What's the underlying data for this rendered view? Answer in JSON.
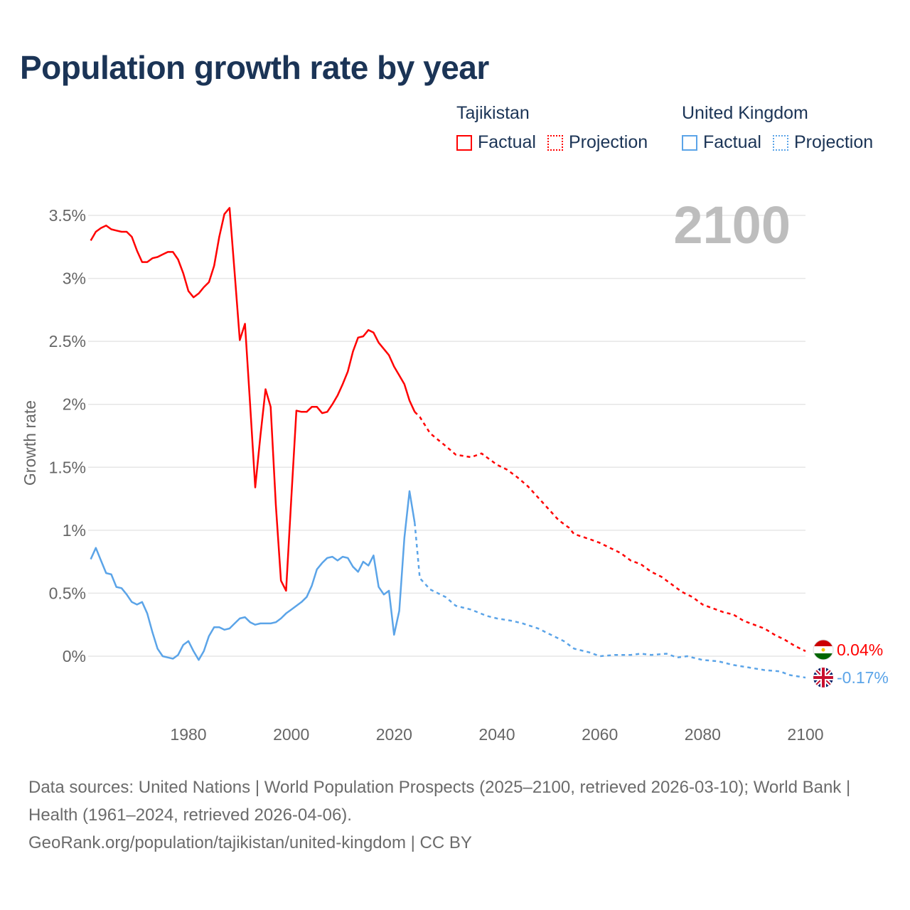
{
  "title": "Population growth rate by year",
  "legend": [
    {
      "country": "Tajikistan",
      "factual": "Factual",
      "projection": "Projection",
      "color": "#ff0000"
    },
    {
      "country": "United Kingdom",
      "factual": "Factual",
      "projection": "Projection",
      "color": "#5ba4e8"
    }
  ],
  "year_watermark": "2100",
  "end_labels": {
    "tajikistan": "0.04%",
    "united_kingdom": "-0.17%"
  },
  "footer": {
    "sources": "Data sources: United Nations | World Population Prospects (2025–2100, retrieved 2026-03-10); World Bank | Health (1961–2024, retrieved 2026-04-06).",
    "link": "GeoRank.org/population/tajikistan/united-kingdom | CC BY"
  },
  "chart_data": {
    "type": "line",
    "title": "Population growth rate by year",
    "xlabel": "",
    "ylabel": "Growth rate",
    "xlim": [
      1961,
      2100
    ],
    "ylim": [
      -0.5,
      3.6
    ],
    "x_ticks": [
      1980,
      2000,
      2020,
      2040,
      2060,
      2080,
      2100
    ],
    "y_ticks": [
      0,
      0.5,
      1,
      1.5,
      2,
      2.5,
      3,
      3.5
    ],
    "y_tick_labels": [
      "0%",
      "0.5%",
      "1%",
      "1.5%",
      "2%",
      "2.5%",
      "3%",
      "3.5%"
    ],
    "series": [
      {
        "name": "Tajikistan Factual",
        "color": "#ff0000",
        "style": "solid",
        "x": [
          1961,
          1962,
          1963,
          1964,
          1965,
          1966,
          1967,
          1968,
          1969,
          1970,
          1971,
          1972,
          1973,
          1974,
          1975,
          1976,
          1977,
          1978,
          1979,
          1980,
          1981,
          1982,
          1983,
          1984,
          1985,
          1986,
          1987,
          1988,
          1989,
          1990,
          1991,
          1992,
          1993,
          1994,
          1995,
          1996,
          1997,
          1998,
          1999,
          2000,
          2001,
          2002,
          2003,
          2004,
          2005,
          2006,
          2007,
          2008,
          2009,
          2010,
          2011,
          2012,
          2013,
          2014,
          2015,
          2016,
          2017,
          2018,
          2019,
          2020,
          2021,
          2022,
          2023,
          2024
        ],
        "values": [
          3.3,
          3.37,
          3.4,
          3.42,
          3.39,
          3.38,
          3.37,
          3.37,
          3.33,
          3.22,
          3.13,
          3.13,
          3.16,
          3.17,
          3.19,
          3.21,
          3.21,
          3.15,
          3.04,
          2.9,
          2.85,
          2.88,
          2.93,
          2.97,
          3.1,
          3.33,
          3.51,
          3.56,
          3.04,
          2.51,
          2.64,
          2.0,
          1.34,
          1.75,
          2.12,
          1.98,
          1.2,
          0.6,
          0.52,
          1.25,
          1.95,
          1.94,
          1.94,
          1.98,
          1.98,
          1.93,
          1.94,
          2.0,
          2.07,
          2.16,
          2.26,
          2.42,
          2.53,
          2.54,
          2.59,
          2.57,
          2.49,
          2.44,
          2.39,
          2.3,
          2.23,
          2.16,
          2.03,
          1.94
        ]
      },
      {
        "name": "Tajikistan Projection",
        "color": "#ff0000",
        "style": "dotted",
        "x": [
          2024,
          2025,
          2027,
          2030,
          2032,
          2035,
          2037,
          2040,
          2042,
          2044,
          2046,
          2048,
          2050,
          2052,
          2054,
          2055,
          2058,
          2060,
          2062,
          2064,
          2066,
          2068,
          2070,
          2072,
          2074,
          2076,
          2078,
          2080,
          2082,
          2084,
          2086,
          2088,
          2090,
          2092,
          2094,
          2096,
          2098,
          2100
        ],
        "values": [
          1.94,
          1.9,
          1.77,
          1.67,
          1.6,
          1.58,
          1.61,
          1.52,
          1.48,
          1.42,
          1.35,
          1.26,
          1.17,
          1.08,
          1.02,
          0.97,
          0.93,
          0.9,
          0.86,
          0.82,
          0.76,
          0.73,
          0.67,
          0.63,
          0.57,
          0.51,
          0.47,
          0.41,
          0.38,
          0.35,
          0.33,
          0.28,
          0.25,
          0.22,
          0.17,
          0.13,
          0.08,
          0.04
        ]
      },
      {
        "name": "United Kingdom Factual",
        "color": "#5ba4e8",
        "style": "solid",
        "x": [
          1961,
          1962,
          1963,
          1964,
          1965,
          1966,
          1967,
          1968,
          1969,
          1970,
          1971,
          1972,
          1973,
          1974,
          1975,
          1976,
          1977,
          1978,
          1979,
          1980,
          1981,
          1982,
          1983,
          1984,
          1985,
          1986,
          1987,
          1988,
          1989,
          1990,
          1991,
          1992,
          1993,
          1994,
          1995,
          1996,
          1997,
          1998,
          1999,
          2000,
          2001,
          2002,
          2003,
          2004,
          2005,
          2006,
          2007,
          2008,
          2009,
          2010,
          2011,
          2012,
          2013,
          2014,
          2015,
          2016,
          2017,
          2018,
          2019,
          2020,
          2021,
          2022,
          2023,
          2024
        ],
        "values": [
          0.77,
          0.86,
          0.76,
          0.66,
          0.65,
          0.55,
          0.54,
          0.49,
          0.43,
          0.41,
          0.43,
          0.34,
          0.19,
          0.06,
          0.0,
          -0.01,
          -0.02,
          0.01,
          0.09,
          0.12,
          0.04,
          -0.03,
          0.04,
          0.16,
          0.23,
          0.23,
          0.21,
          0.22,
          0.26,
          0.3,
          0.31,
          0.27,
          0.25,
          0.26,
          0.26,
          0.26,
          0.27,
          0.3,
          0.34,
          0.37,
          0.4,
          0.43,
          0.47,
          0.56,
          0.69,
          0.74,
          0.78,
          0.79,
          0.76,
          0.79,
          0.78,
          0.71,
          0.67,
          0.75,
          0.72,
          0.8,
          0.55,
          0.49,
          0.52,
          0.17,
          0.36,
          0.94,
          1.31,
          1.06
        ]
      },
      {
        "name": "United Kingdom Projection",
        "color": "#5ba4e8",
        "style": "dotted",
        "x": [
          2024,
          2025,
          2027,
          2030,
          2032,
          2035,
          2038,
          2040,
          2043,
          2045,
          2048,
          2050,
          2053,
          2055,
          2058,
          2060,
          2063,
          2066,
          2068,
          2070,
          2073,
          2075,
          2077,
          2080,
          2083,
          2086,
          2089,
          2092,
          2095,
          2097,
          2100
        ],
        "values": [
          1.06,
          0.62,
          0.53,
          0.47,
          0.4,
          0.37,
          0.32,
          0.3,
          0.28,
          0.26,
          0.22,
          0.18,
          0.12,
          0.06,
          0.03,
          0.0,
          0.01,
          0.01,
          0.02,
          0.01,
          0.02,
          -0.01,
          0.0,
          -0.03,
          -0.04,
          -0.07,
          -0.09,
          -0.11,
          -0.12,
          -0.15,
          -0.17
        ]
      }
    ]
  }
}
